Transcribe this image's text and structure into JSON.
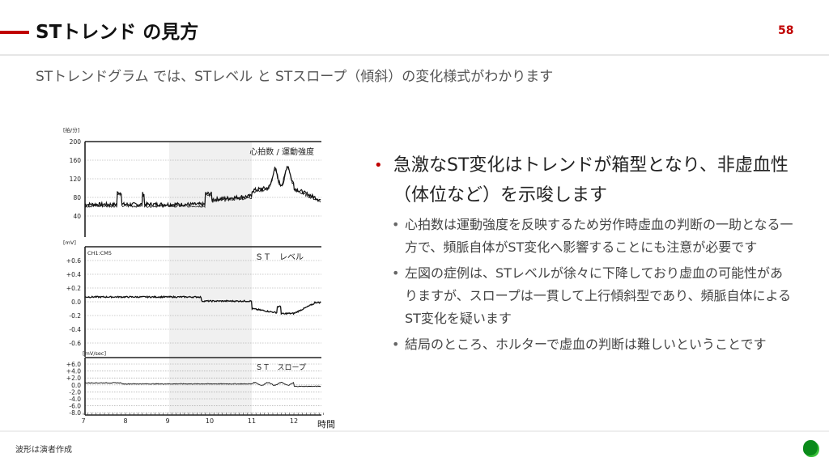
{
  "header": {
    "title": "STトレンド の見方",
    "page_number": "58"
  },
  "subtitle": "STトレンドグラム では、STレベル と STスロープ（傾斜）の変化様式がわかります",
  "figure": {
    "panels": [
      {
        "unit": "[拍/分]",
        "label": "心拍数 / 運動強度",
        "ticks": [
          "200",
          "160",
          "120",
          "80",
          "40"
        ]
      },
      {
        "unit": "[mV]",
        "channel": "CH1:CM5",
        "label": "ＳＴ　レベル",
        "ticks": [
          "+0.6",
          "+0.4",
          "+0.2",
          "0.0",
          "-0.2",
          "-0.4",
          "-0.6"
        ]
      },
      {
        "unit": "[mV/sec]",
        "label": "ＳＴ　スロープ",
        "ticks": [
          "+6.0",
          "+4.0",
          "+2.0",
          "0.0",
          "-2.0",
          "-4.0",
          "-6.0",
          "-8.0"
        ]
      }
    ],
    "x_ticks": [
      "7",
      "8",
      "9",
      "10",
      "11",
      "12"
    ],
    "x_label": "時間"
  },
  "bullets": [
    {
      "text": "急激なST変化はトレンドが箱型となり、非虚血性（体位など）を示唆します",
      "sub": [
        "心拍数は運動強度を反映するため労作時虚血の判断の一助となる一方で、頻脈自体がST変化へ影響することにも注意が必要です",
        "左図の症例は、STレベルが徐々に下降しており虚血の可能性がありますが、スロープは一貫して上行傾斜型であり、頻脈自体によるST変化を疑います",
        "結局のところ、ホルターで虚血の判断は難しいということです"
      ]
    }
  ],
  "footnote": "波形は演者作成",
  "colors": {
    "accent": "#c00000",
    "logo": "#0a8a1a"
  }
}
